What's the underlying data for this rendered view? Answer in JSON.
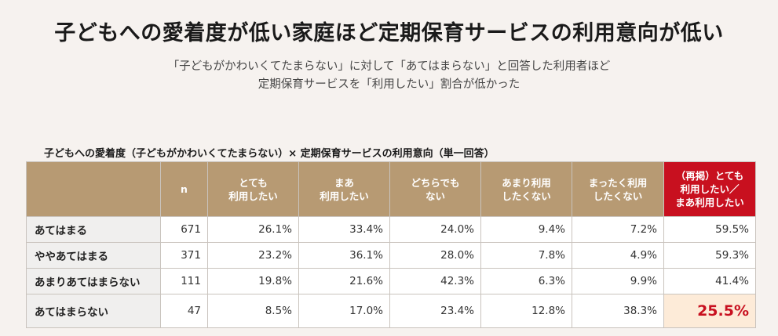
{
  "title": "子どもへの愛着度が低い家庭ほど定期保育サービスの利用意向が低い",
  "subtitle_line1": "「子どもがかわいくてたまらない」に対して「あてはまらない」と回答した利用者ほど",
  "subtitle_line2": "定期保育サービスを「利用したい」割合が低かった",
  "table": {
    "caption": "子どもへの愛着度（子どもがかわいくてたまらない）× 定期保育サービスの利用意向（単一回答）",
    "headers": {
      "blank": "",
      "n": "n",
      "c1_l1": "とても",
      "c1_l2": "利用したい",
      "c2_l1": "まあ",
      "c2_l2": "利用したい",
      "c3_l1": "どちらでも",
      "c3_l2": "ない",
      "c4_l1": "あまり利用",
      "c4_l2": "したくない",
      "c5_l1": "まったく利用",
      "c5_l2": "したくない",
      "c6_l1": "（再掲）とても",
      "c6_l2": "利用したい／",
      "c6_l3": "まあ利用したい"
    },
    "rows": [
      {
        "label": "あてはまる",
        "n": "671",
        "c1": "26.1%",
        "c2": "33.4%",
        "c3": "24.0%",
        "c4": "9.4%",
        "c5": "7.2%",
        "c6": "59.5%"
      },
      {
        "label": "ややあてはまる",
        "n": "371",
        "c1": "23.2%",
        "c2": "36.1%",
        "c3": "28.0%",
        "c4": "7.8%",
        "c5": "4.9%",
        "c6": "59.3%"
      },
      {
        "label": "あまりあてはまらない",
        "n": "111",
        "c1": "19.8%",
        "c2": "21.6%",
        "c3": "42.3%",
        "c4": "6.3%",
        "c5": "9.9%",
        "c6": "41.4%"
      },
      {
        "label": "あてはまらない",
        "n": "47",
        "c1": "8.5%",
        "c2": "17.0%",
        "c3": "23.4%",
        "c4": "12.8%",
        "c5": "38.3%",
        "c6": "25.5%"
      }
    ]
  },
  "colors": {
    "header_bg": "#b79a73",
    "highlight_header_bg": "#c8101f",
    "highlight_cell_bg": "#fdebd8",
    "highlight_text": "#c8101f"
  }
}
